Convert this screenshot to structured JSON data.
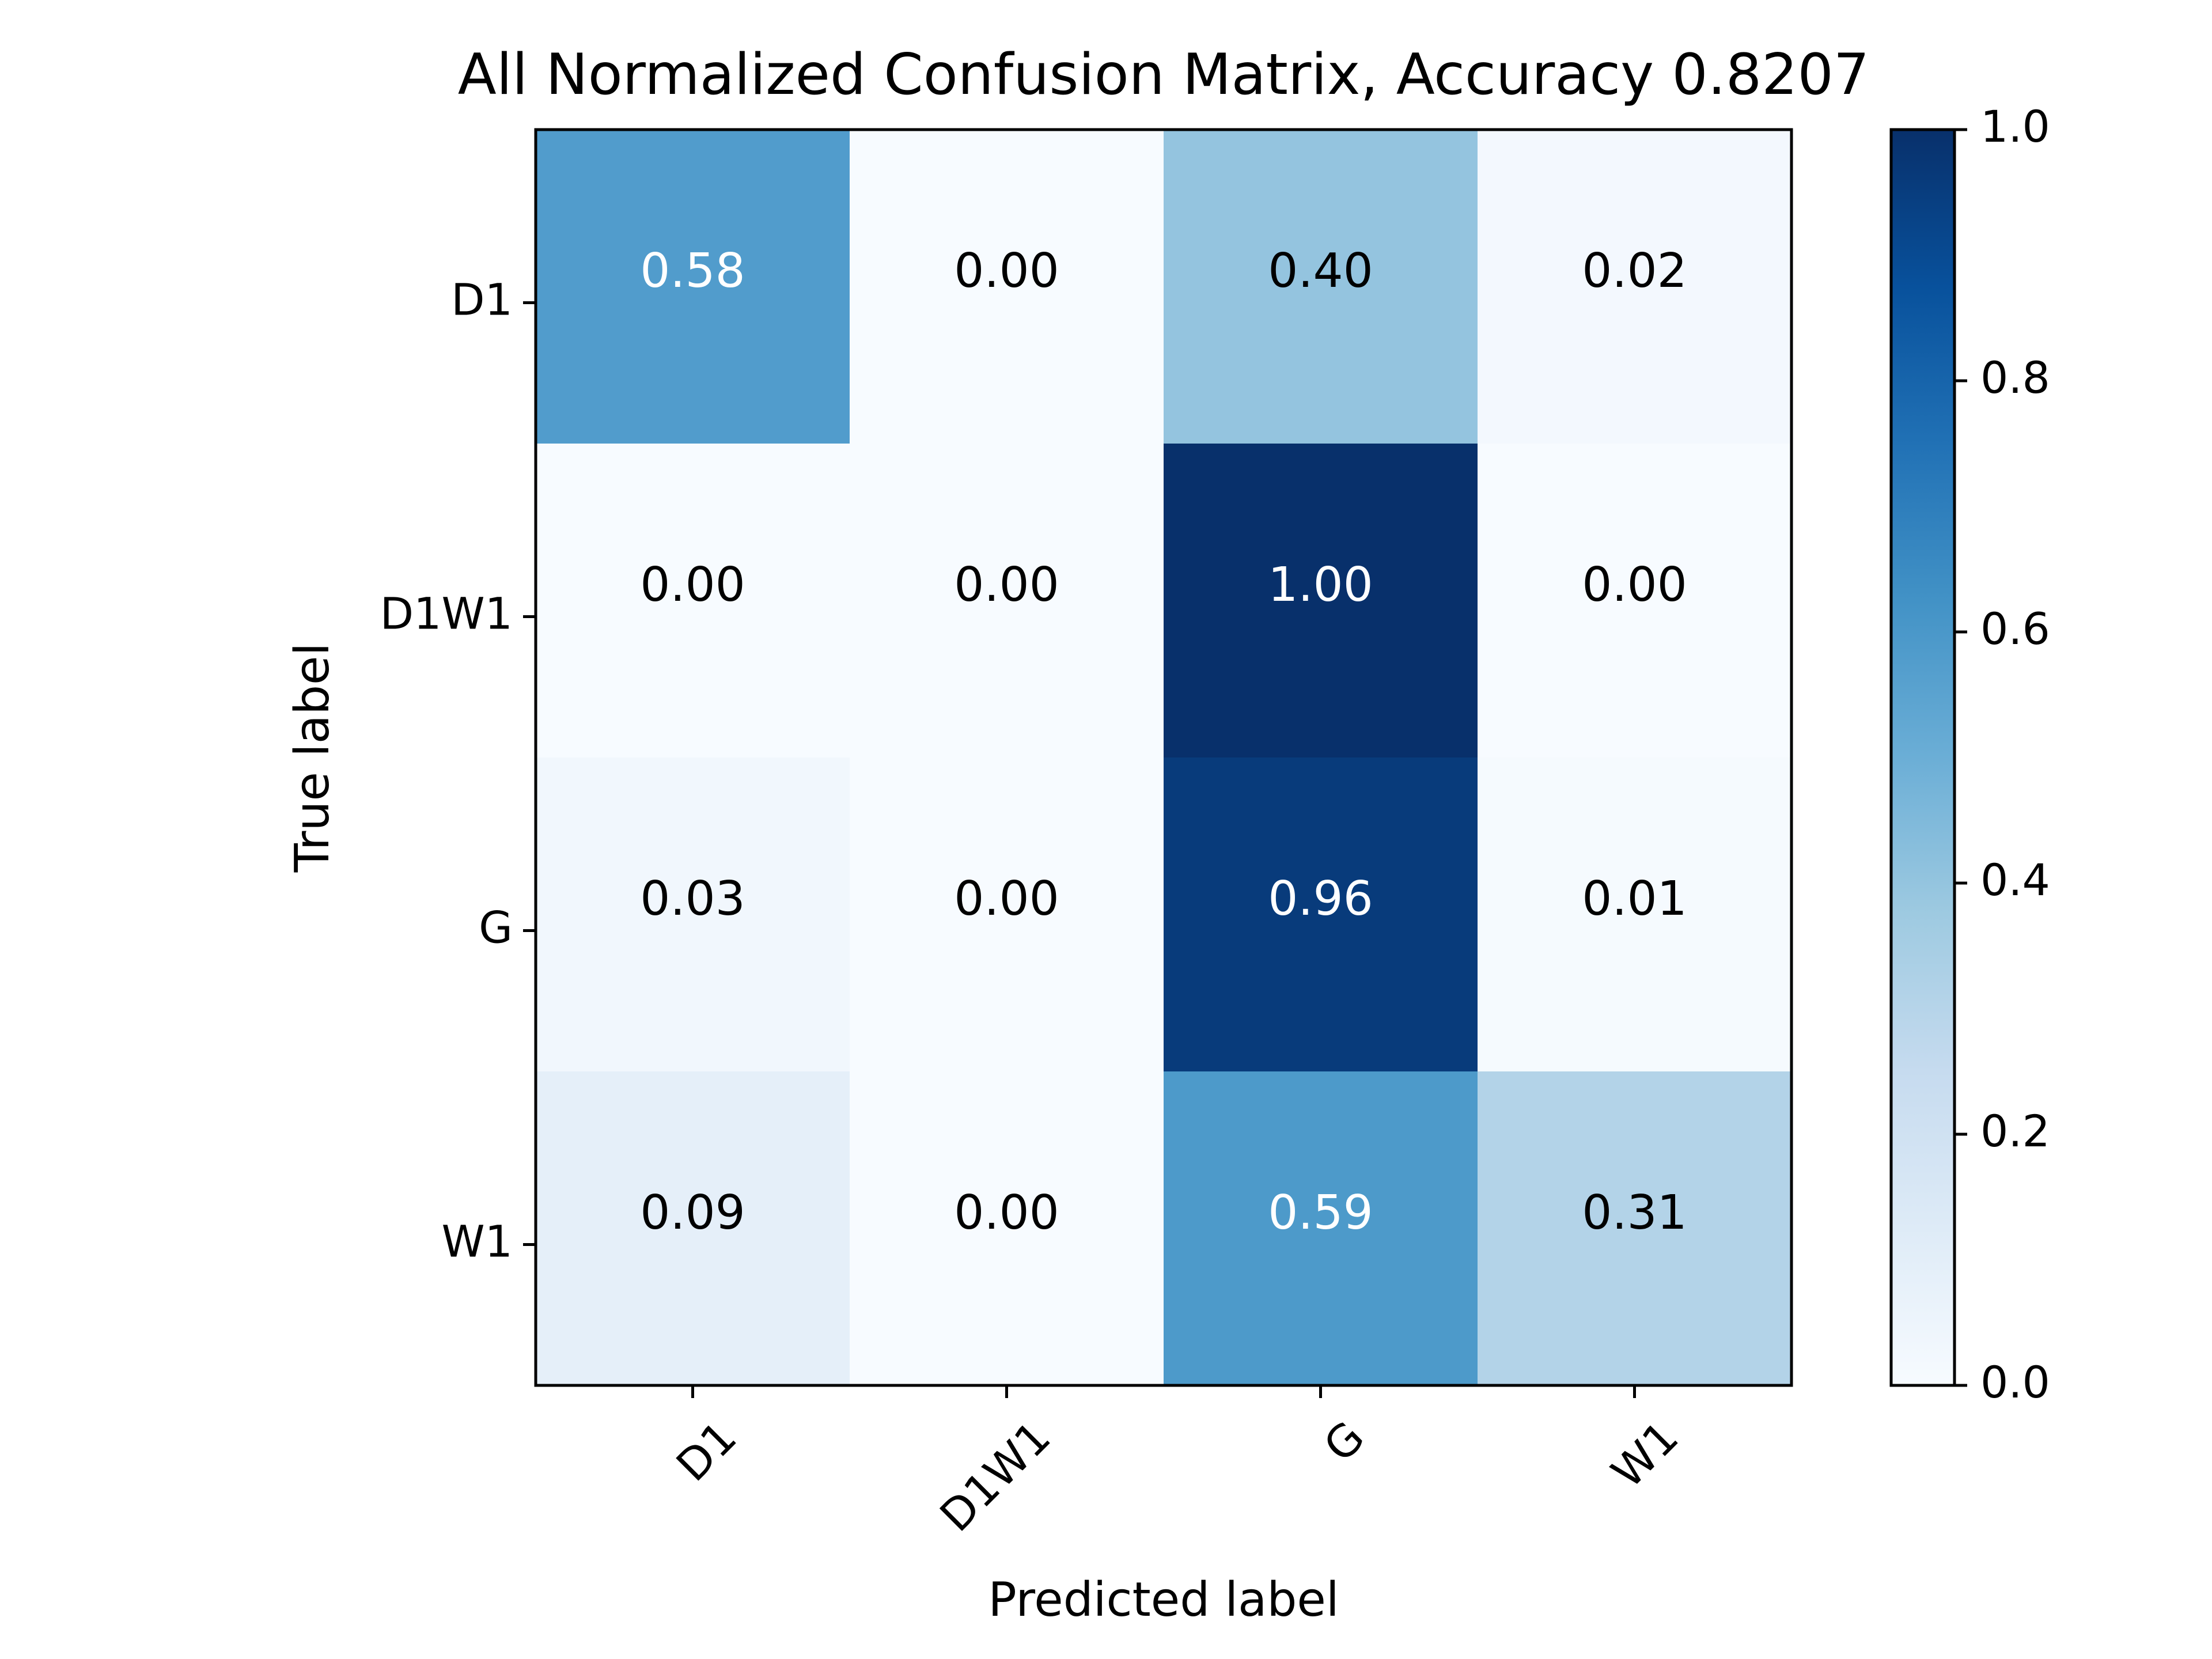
{
  "chart_data": {
    "type": "heatmap",
    "title": "All Normalized Confusion Matrix, Accuracy 0.8207",
    "xlabel": "Predicted label",
    "ylabel": "True label",
    "x_categories": [
      "D1",
      "D1W1",
      "G",
      "W1"
    ],
    "y_categories": [
      "D1",
      "D1W1",
      "G",
      "W1"
    ],
    "values": [
      [
        0.58,
        0.0,
        0.4,
        0.02
      ],
      [
        0.0,
        0.0,
        1.0,
        0.0
      ],
      [
        0.03,
        0.0,
        0.96,
        0.01
      ],
      [
        0.09,
        0.0,
        0.59,
        0.31
      ]
    ],
    "value_labels": [
      [
        "0.58",
        "0.00",
        "0.40",
        "0.02"
      ],
      [
        "0.00",
        "0.00",
        "1.00",
        "0.00"
      ],
      [
        "0.03",
        "0.00",
        "0.96",
        "0.01"
      ],
      [
        "0.09",
        "0.00",
        "0.59",
        "0.31"
      ]
    ],
    "colormap": "Blues",
    "colorbar": {
      "range": [
        0.0,
        1.0
      ],
      "ticks": [
        0.0,
        0.2,
        0.4,
        0.6,
        0.8,
        1.0
      ],
      "tick_labels": [
        "0.0",
        "0.2",
        "0.4",
        "0.6",
        "0.8",
        "1.0"
      ]
    },
    "annotation_colors": {
      "dark_text": "#000000",
      "light_text": "#ffffff"
    },
    "x_tick_rotation_deg": 45
  }
}
